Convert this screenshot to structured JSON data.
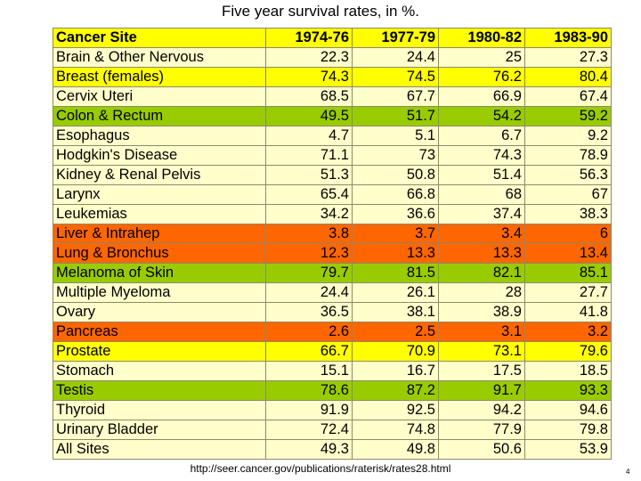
{
  "title": "Five year survival rates, in %.",
  "colors": {
    "yellow": "#ffff00",
    "green": "#99cc00",
    "orange": "#ff6600",
    "light": "#ffffcc"
  },
  "table": {
    "headers": [
      "Cancer Site",
      "1974-76",
      "1977-79",
      "1980-82",
      "1983-90"
    ],
    "rows": [
      {
        "site": "Brain & Other Nervous",
        "values": [
          "22.3",
          "24.4",
          "25",
          "27.3"
        ],
        "color": "light"
      },
      {
        "site": "Breast (females)",
        "values": [
          "74.3",
          "74.5",
          "76.2",
          "80.4"
        ],
        "color": "yellow"
      },
      {
        "site": "Cervix Uteri",
        "values": [
          "68.5",
          "67.7",
          "66.9",
          "67.4"
        ],
        "color": "light"
      },
      {
        "site": "Colon & Rectum",
        "values": [
          "49.5",
          "51.7",
          "54.2",
          "59.2"
        ],
        "color": "green"
      },
      {
        "site": "Esophagus",
        "values": [
          "4.7",
          "5.1",
          "6.7",
          "9.2"
        ],
        "color": "light"
      },
      {
        "site": "Hodgkin's Disease",
        "values": [
          "71.1",
          "73",
          "74.3",
          "78.9"
        ],
        "color": "light"
      },
      {
        "site": "Kidney & Renal Pelvis",
        "values": [
          "51.3",
          "50.8",
          "51.4",
          "56.3"
        ],
        "color": "light"
      },
      {
        "site": "Larynx",
        "values": [
          "65.4",
          "66.8",
          "68",
          "67"
        ],
        "color": "light"
      },
      {
        "site": "Leukemias",
        "values": [
          "34.2",
          "36.6",
          "37.4",
          "38.3"
        ],
        "color": "light"
      },
      {
        "site": "Liver & Intrahep",
        "values": [
          "3.8",
          "3.7",
          "3.4",
          "6"
        ],
        "color": "orange"
      },
      {
        "site": "Lung & Bronchus",
        "values": [
          "12.3",
          "13.3",
          "13.3",
          "13.4"
        ],
        "color": "orange"
      },
      {
        "site": "Melanoma of Skin",
        "values": [
          "79.7",
          "81.5",
          "82.1",
          "85.1"
        ],
        "color": "green"
      },
      {
        "site": "Multiple Myeloma",
        "values": [
          "24.4",
          "26.1",
          "28",
          "27.7"
        ],
        "color": "light"
      },
      {
        "site": "Ovary",
        "values": [
          "36.5",
          "38.1",
          "38.9",
          "41.8"
        ],
        "color": "light"
      },
      {
        "site": "Pancreas",
        "values": [
          "2.6",
          "2.5",
          "3.1",
          "3.2"
        ],
        "color": "orange"
      },
      {
        "site": "Prostate",
        "values": [
          "66.7",
          "70.9",
          "73.1",
          "79.6"
        ],
        "color": "yellow"
      },
      {
        "site": "Stomach",
        "values": [
          "15.1",
          "16.7",
          "17.5",
          "18.5"
        ],
        "color": "light"
      },
      {
        "site": "Testis",
        "values": [
          "78.6",
          "87.2",
          "91.7",
          "93.3"
        ],
        "color": "green"
      },
      {
        "site": "Thyroid",
        "values": [
          "91.9",
          "92.5",
          "94.2",
          "94.6"
        ],
        "color": "light"
      },
      {
        "site": "Urinary Bladder",
        "values": [
          "72.4",
          "74.8",
          "77.9",
          "79.8"
        ],
        "color": "light"
      },
      {
        "site": "All Sites",
        "values": [
          "49.3",
          "49.8",
          "50.6",
          "53.9"
        ],
        "color": "light"
      }
    ]
  },
  "footer": {
    "url": "http://seer.cancer.gov/publications/raterisk/rates28.html",
    "page_number": "4"
  }
}
